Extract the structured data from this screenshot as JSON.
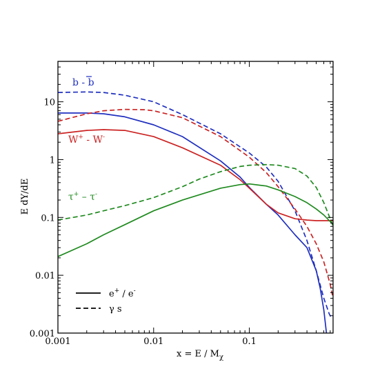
{
  "chart_data": {
    "type": "line",
    "xscale": "log",
    "yscale": "log",
    "xlim": [
      0.001,
      0.75
    ],
    "ylim": [
      0.001,
      50
    ],
    "xticks": [
      "0.001",
      "0.01",
      "0.1"
    ],
    "yticks": [
      "0.001",
      "0.01",
      "0.1",
      "1",
      "10"
    ],
    "xlabel": {
      "main": "x = E / M",
      "sub": "χ"
    },
    "ylabel": "E  dY/dE",
    "grid": false,
    "colors": {
      "bb": "#1f2fbf",
      "ww": "#cc2222",
      "tautau": "#1f8a1f",
      "axis": "#000000"
    },
    "annotations": [
      {
        "id": "bb",
        "text": "b - b",
        "color": "#1f2fbf"
      },
      {
        "id": "ww",
        "parts": [
          [
            "W",
            ""
          ],
          [
            "+",
            "sup"
          ],
          [
            " - W",
            ""
          ],
          [
            "-",
            "sup"
          ]
        ],
        "color": "#cc2222"
      },
      {
        "id": "tautau",
        "parts": [
          [
            "τ",
            ""
          ],
          [
            "+",
            "sup"
          ],
          [
            " – τ",
            ""
          ],
          [
            "-",
            "sup"
          ]
        ],
        "color": "#1f8a1f"
      }
    ],
    "legend": {
      "position": "bottom-left",
      "entries": [
        {
          "style": "solid",
          "parts": [
            [
              "e",
              ""
            ],
            [
              "+",
              "sup"
            ],
            [
              " / e",
              ""
            ],
            [
              "-",
              "sup"
            ]
          ]
        },
        {
          "style": "dashed",
          "parts": [
            [
              "γ s",
              ""
            ]
          ]
        }
      ]
    },
    "series": [
      {
        "channel": "bb",
        "style": "dashed",
        "x": [
          0.001,
          0.002,
          0.003,
          0.005,
          0.01,
          0.02,
          0.05,
          0.1,
          0.15,
          0.2,
          0.3,
          0.4,
          0.5,
          0.6,
          0.68,
          0.72
        ],
        "y": [
          14.5,
          14.8,
          14.5,
          13.0,
          10.0,
          6.0,
          2.8,
          1.3,
          0.75,
          0.42,
          0.13,
          0.04,
          0.012,
          0.004,
          0.0022,
          0.0018
        ]
      },
      {
        "channel": "bb",
        "style": "solid",
        "x": [
          0.001,
          0.002,
          0.003,
          0.005,
          0.01,
          0.02,
          0.05,
          0.08,
          0.1,
          0.15,
          0.2,
          0.3,
          0.4,
          0.5,
          0.55,
          0.6,
          0.64
        ],
        "y": [
          6.4,
          6.4,
          6.2,
          5.5,
          4.0,
          2.5,
          0.95,
          0.5,
          0.33,
          0.17,
          0.11,
          0.05,
          0.03,
          0.012,
          0.006,
          0.0025,
          0.001
        ]
      },
      {
        "channel": "ww",
        "style": "dashed",
        "x": [
          0.001,
          0.002,
          0.003,
          0.005,
          0.008,
          0.01,
          0.02,
          0.05,
          0.1,
          0.15,
          0.2,
          0.3,
          0.4,
          0.5,
          0.6,
          0.7,
          0.75
        ],
        "y": [
          4.6,
          6.2,
          7.0,
          7.4,
          7.3,
          7.0,
          5.3,
          2.5,
          1.1,
          0.6,
          0.34,
          0.14,
          0.07,
          0.035,
          0.017,
          0.007,
          0.004
        ]
      },
      {
        "channel": "ww",
        "style": "solid",
        "x": [
          0.001,
          0.002,
          0.003,
          0.005,
          0.01,
          0.02,
          0.05,
          0.08,
          0.1,
          0.15,
          0.2,
          0.3,
          0.4,
          0.5,
          0.75
        ],
        "y": [
          2.8,
          3.2,
          3.3,
          3.2,
          2.5,
          1.6,
          0.8,
          0.45,
          0.32,
          0.17,
          0.12,
          0.095,
          0.09,
          0.088,
          0.088
        ]
      },
      {
        "channel": "tautau",
        "style": "dashed",
        "x": [
          0.001,
          0.002,
          0.003,
          0.005,
          0.01,
          0.02,
          0.03,
          0.05,
          0.08,
          0.1,
          0.15,
          0.2,
          0.3,
          0.4,
          0.5,
          0.6,
          0.7,
          0.75
        ],
        "y": [
          0.09,
          0.11,
          0.13,
          0.16,
          0.22,
          0.34,
          0.46,
          0.62,
          0.76,
          0.8,
          0.82,
          0.8,
          0.7,
          0.52,
          0.33,
          0.18,
          0.095,
          0.07
        ]
      },
      {
        "channel": "tautau",
        "style": "solid",
        "x": [
          0.001,
          0.002,
          0.003,
          0.005,
          0.01,
          0.02,
          0.05,
          0.08,
          0.1,
          0.15,
          0.2,
          0.3,
          0.4,
          0.5,
          0.6,
          0.7,
          0.75
        ],
        "y": [
          0.021,
          0.035,
          0.05,
          0.075,
          0.13,
          0.2,
          0.32,
          0.37,
          0.38,
          0.35,
          0.3,
          0.23,
          0.18,
          0.14,
          0.11,
          0.085,
          0.075
        ]
      }
    ]
  }
}
